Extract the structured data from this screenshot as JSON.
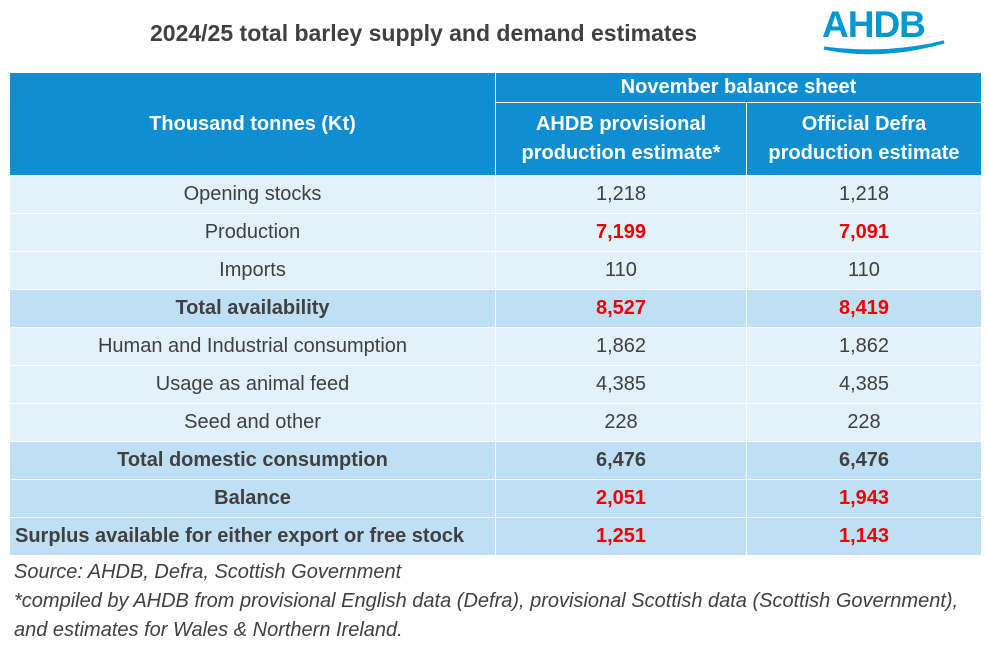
{
  "title": "2024/25 total barley supply and demand estimates",
  "logo_text": "AHDB",
  "colors": {
    "header_blue": "#0f8fd1",
    "red_value": "#ee0000",
    "row_light": "#e3f1fb",
    "row_mid": "#bfdff5"
  },
  "table": {
    "row_header": "Thousand tonnes (Kt)",
    "group_header": "November balance sheet",
    "col1_header": "AHDB provisional production estimate*",
    "col2_header": "Official Defra production estimate",
    "rows": [
      {
        "label": "Opening stocks",
        "ahdb": "1,218",
        "defra": "1,218"
      },
      {
        "label": "Production",
        "ahdb": "7,199",
        "defra": "7,091"
      },
      {
        "label": "Imports",
        "ahdb": "110",
        "defra": "110"
      },
      {
        "label": "Total availability",
        "ahdb": "8,527",
        "defra": "8,419"
      },
      {
        "label": "Human and Industrial consumption",
        "ahdb": "1,862",
        "defra": "1,862"
      },
      {
        "label": "Usage as animal feed",
        "ahdb": "4,385",
        "defra": "4,385"
      },
      {
        "label": "Seed and other",
        "ahdb": "228",
        "defra": "228"
      },
      {
        "label": "Total domestic consumption",
        "ahdb": "6,476",
        "defra": "6,476"
      },
      {
        "label": "Balance",
        "ahdb": "2,051",
        "defra": "1,943"
      },
      {
        "label": "Surplus available for either export or free stock",
        "ahdb": "1,251",
        "defra": "1,143"
      }
    ]
  },
  "source_line": "Source: AHDB, Defra, Scottish Government",
  "footnote": "*compiled by AHDB from provisional English data (Defra), provisional Scottish data (Scottish Government), and estimates for Wales & Northern Ireland."
}
